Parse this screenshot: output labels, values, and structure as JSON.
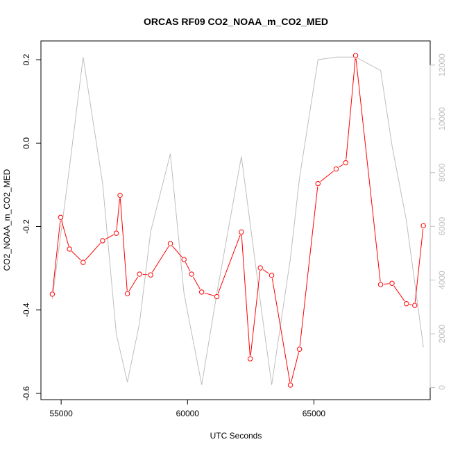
{
  "chart_data": {
    "type": "line",
    "title": "ORCAS RF09 CO2_NOAA_m_CO2_MED",
    "xlabel": "UTC Seconds",
    "ylabel": "CO2_NOAA_m_CO2_MED",
    "xlim": [
      54200,
      69600
    ],
    "ylim": [
      -0.615,
      0.245
    ],
    "y2lim": [
      -450,
      12900
    ],
    "x_ticks": [
      55000,
      60000,
      65000
    ],
    "x_tick_labels": [
      "55000",
      "60000",
      "65000"
    ],
    "y_ticks": [
      -0.6,
      -0.4,
      -0.2,
      0.0,
      0.2
    ],
    "y_tick_labels": [
      "-0.6",
      "-0.4",
      "-0.2",
      "0.0",
      "0.2"
    ],
    "y2_ticks": [
      0,
      2000,
      4000,
      6000,
      8000,
      10000,
      12000
    ],
    "y2_tick_labels": [
      "0",
      "2000",
      "4000",
      "6000",
      "8000",
      "10000",
      "12000"
    ],
    "grid": false,
    "series": [
      {
        "axis": "left",
        "color": "#ff0000",
        "style": "line-with-open-circles",
        "x": [
          54650,
          54980,
          55330,
          55870,
          56640,
          57180,
          57330,
          57620,
          58100,
          58540,
          59320,
          59860,
          60160,
          60560,
          61160,
          62130,
          62480,
          62880,
          63330,
          64070,
          64430,
          65160,
          65880,
          66260,
          66650,
          67640,
          68090,
          68660,
          68990,
          69330
        ],
        "y": [
          -0.362,
          -0.178,
          -0.254,
          -0.286,
          -0.234,
          -0.216,
          -0.125,
          -0.361,
          -0.314,
          -0.316,
          -0.241,
          -0.279,
          -0.314,
          -0.357,
          -0.368,
          -0.213,
          -0.517,
          -0.299,
          -0.317,
          -0.58,
          -0.494,
          -0.097,
          -0.062,
          -0.047,
          0.21,
          -0.339,
          -0.336,
          -0.385,
          -0.389,
          -0.198
        ]
      },
      {
        "axis": "right",
        "color": "#bebebe",
        "style": "line",
        "x": [
          54650,
          55330,
          55870,
          56640,
          57180,
          57620,
          58100,
          58540,
          59320,
          59860,
          60560,
          61160,
          62130,
          62880,
          63330,
          64070,
          64430,
          65160,
          65880,
          66650,
          67640,
          68090,
          68660,
          69330
        ],
        "y": [
          3300,
          8200,
          12300,
          7600,
          2000,
          200,
          2400,
          5800,
          8700,
          3500,
          100,
          3500,
          8600,
          3200,
          100,
          4800,
          7800,
          12200,
          12300,
          12300,
          11800,
          9000,
          6200,
          1500
        ]
      }
    ]
  }
}
